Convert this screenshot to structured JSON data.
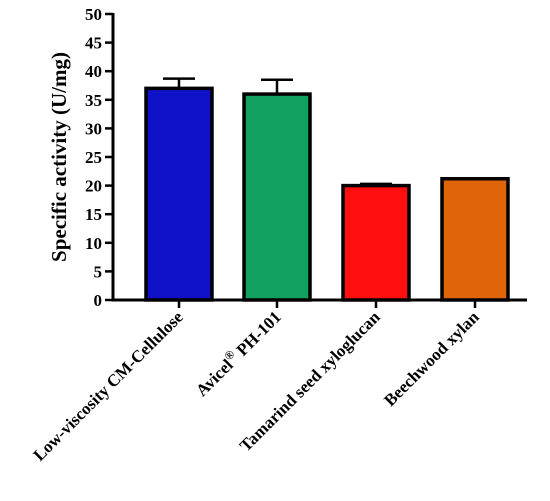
{
  "chart_data": {
    "type": "bar",
    "title": "",
    "xlabel": "",
    "ylabel": "Specific activity (U/mg)",
    "ylim": [
      0,
      50
    ],
    "yticks": [
      0,
      5,
      10,
      15,
      20,
      25,
      30,
      35,
      40,
      45,
      50
    ],
    "grid": false,
    "categories": [
      {
        "main": "Low-viscosity CM-Cellulose",
        "sup": "",
        "suffix": ""
      },
      {
        "main": "Avicel",
        "sup": "®",
        "suffix": " PH-101"
      },
      {
        "main": "Tamarind seed xyloglucan",
        "sup": "",
        "suffix": ""
      },
      {
        "main": "Beechwood xylan",
        "sup": "",
        "suffix": ""
      }
    ],
    "values": [
      37,
      36,
      20,
      21.2
    ],
    "errors": [
      1.7,
      2.5,
      0.3,
      0.1
    ],
    "colors": [
      "#0f12c8",
      "#12a060",
      "#ff0f0f",
      "#e0650a"
    ]
  }
}
